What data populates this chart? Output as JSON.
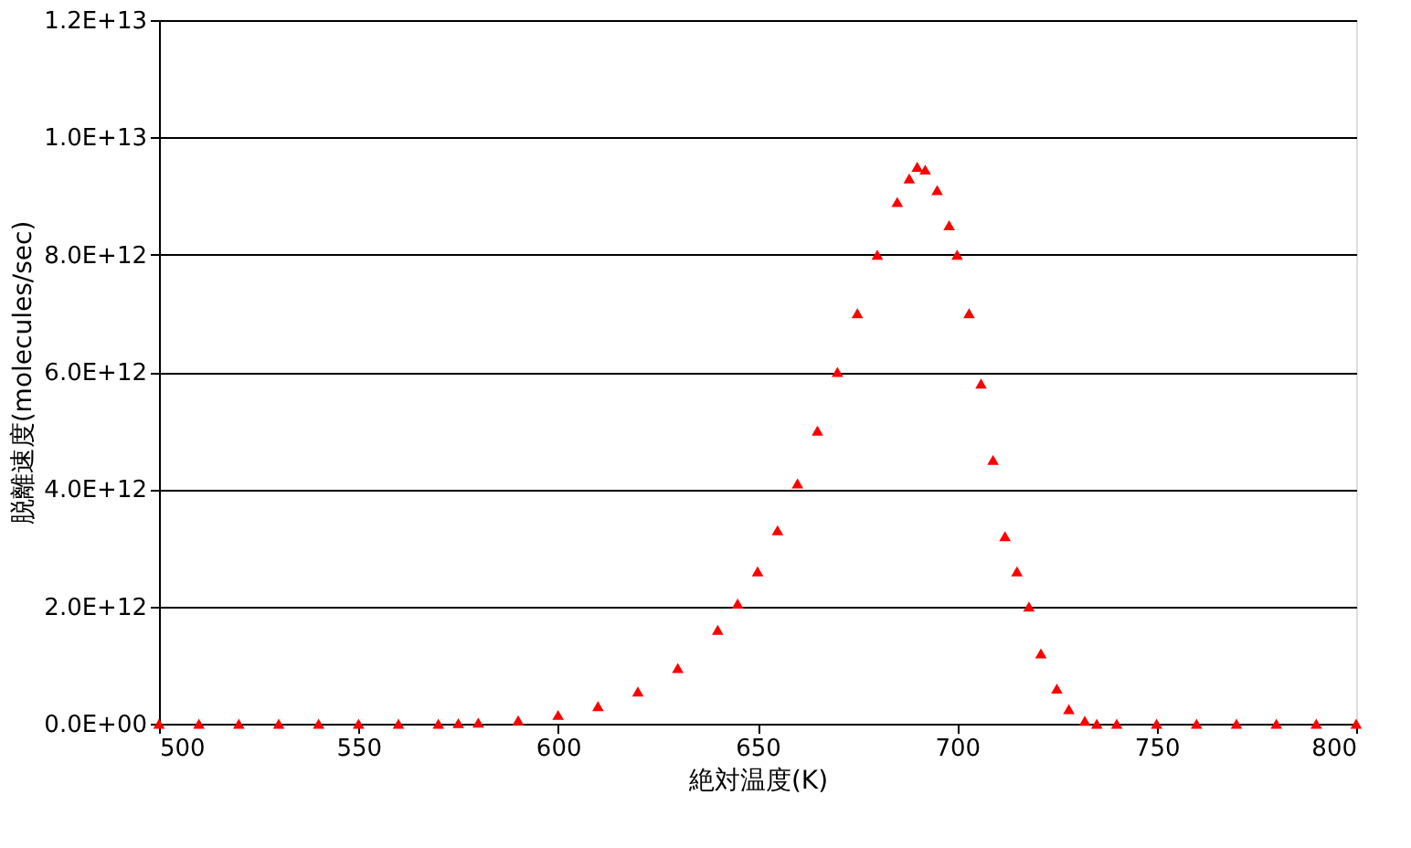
{
  "chart_data": {
    "type": "scatter",
    "xlabel": "絶対温度(K)",
    "ylabel": "脱離速度(molecules/sec)",
    "x": [
      500,
      510,
      520,
      530,
      540,
      550,
      560,
      570,
      575,
      580,
      590,
      600,
      610,
      620,
      630,
      640,
      645,
      650,
      655,
      660,
      665,
      670,
      675,
      680,
      685,
      688,
      690,
      692,
      695,
      698,
      700,
      703,
      706,
      709,
      712,
      715,
      718,
      721,
      725,
      728,
      732,
      735,
      740,
      750,
      760,
      770,
      780,
      790,
      800
    ],
    "series": [
      {
        "color": "#ff0000",
        "values": [
          0,
          0,
          0,
          0,
          0,
          0,
          0,
          0,
          10000000000.0,
          20000000000.0,
          60000000000.0,
          150000000000.0,
          300000000000.0,
          550000000000.0,
          950000000000.0,
          1600000000000.0,
          2050000000000.0,
          2600000000000.0,
          3300000000000.0,
          4100000000000.0,
          5000000000000.0,
          6000000000000.0,
          7000000000000.0,
          8000000000000.0,
          8900000000000.0,
          9300000000000.0,
          9500000000000.0,
          9450000000000.0,
          9100000000000.0,
          8500000000000.0,
          8000000000000.0,
          7000000000000.0,
          5800000000000.0,
          4500000000000.0,
          3200000000000.0,
          2600000000000.0,
          2000000000000.0,
          1200000000000.0,
          600000000000.0,
          250000000000.0,
          50000000000.0,
          0,
          0,
          0,
          0,
          0,
          0,
          0,
          0
        ]
      }
    ],
    "xlim": [
      500,
      800
    ],
    "xticks": [
      500,
      550,
      600,
      650,
      700,
      750,
      800
    ],
    "ylim": [
      0,
      12000000000000.0
    ],
    "yticks": [
      {
        "value": 0,
        "label": "0.0E+00"
      },
      {
        "value": 2000000000000.0,
        "label": "2.0E+12"
      },
      {
        "value": 4000000000000.0,
        "label": "4.0E+12"
      },
      {
        "value": 6000000000000.0,
        "label": "6.0E+12"
      },
      {
        "value": 8000000000000.0,
        "label": "8.0E+12"
      },
      {
        "value": 10000000000000.0,
        "label": "1.0E+13"
      },
      {
        "value": 12000000000000.0,
        "label": "1.2E+13"
      }
    ],
    "grid": "y",
    "marker": "triangle"
  }
}
